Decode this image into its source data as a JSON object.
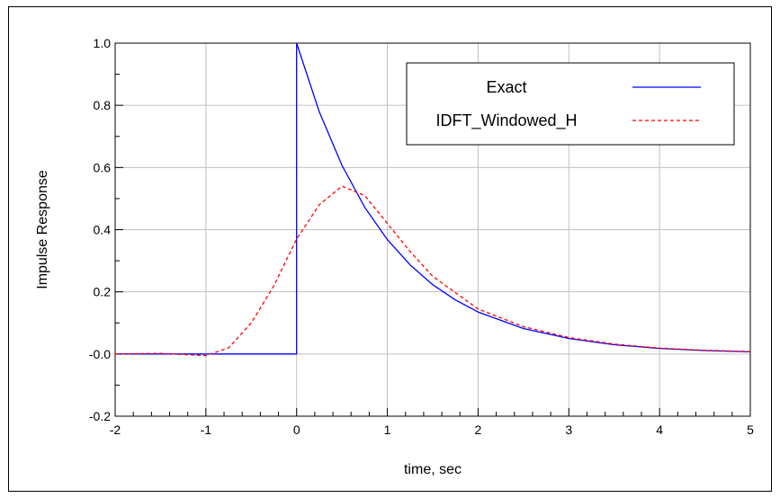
{
  "chart_data": {
    "type": "line",
    "xlabel": "time, sec",
    "ylabel": "Impulse Response",
    "xlim": [
      -2,
      5
    ],
    "ylim": [
      -0.2,
      1.0
    ],
    "x_ticks": [
      -2,
      -1,
      0,
      1,
      2,
      3,
      4,
      5
    ],
    "x_tick_labels": [
      "-2",
      "-1",
      "0",
      "1",
      "2",
      "3",
      "4",
      "5"
    ],
    "y_ticks": [
      -0.2,
      0.0,
      0.2,
      0.4,
      0.6,
      0.8,
      1.0
    ],
    "y_tick_labels": [
      "-0.2",
      "-0.0",
      "0.2",
      "0.4",
      "0.6",
      "0.8",
      "1.0"
    ],
    "grid": true,
    "legend_position": "top-right",
    "series": [
      {
        "name": "Exact",
        "color": "#0000ff",
        "style": "solid",
        "points": [
          [
            -2,
            0
          ],
          [
            -1,
            0
          ],
          [
            0,
            0
          ],
          [
            0,
            1.0
          ],
          [
            0.25,
            0.779
          ],
          [
            0.5,
            0.607
          ],
          [
            0.75,
            0.472
          ],
          [
            1.0,
            0.368
          ],
          [
            1.25,
            0.287
          ],
          [
            1.5,
            0.223
          ],
          [
            1.75,
            0.174
          ],
          [
            2.0,
            0.135
          ],
          [
            2.5,
            0.082
          ],
          [
            3.0,
            0.05
          ],
          [
            3.5,
            0.03
          ],
          [
            4.0,
            0.018
          ],
          [
            4.5,
            0.011
          ],
          [
            5.0,
            0.007
          ]
        ]
      },
      {
        "name": "IDFT_Windowed_H",
        "color": "#ff0000",
        "style": "dashed",
        "points": [
          [
            -2,
            0
          ],
          [
            -1.5,
            0.002
          ],
          [
            -1.0,
            -0.005
          ],
          [
            -0.75,
            0.02
          ],
          [
            -0.5,
            0.1
          ],
          [
            -0.25,
            0.22
          ],
          [
            0,
            0.37
          ],
          [
            0.25,
            0.48
          ],
          [
            0.5,
            0.54
          ],
          [
            0.75,
            0.51
          ],
          [
            1.0,
            0.42
          ],
          [
            1.25,
            0.33
          ],
          [
            1.5,
            0.25
          ],
          [
            2.0,
            0.145
          ],
          [
            2.5,
            0.088
          ],
          [
            3.0,
            0.053
          ],
          [
            3.5,
            0.032
          ],
          [
            4.0,
            0.019
          ],
          [
            4.5,
            0.012
          ],
          [
            5.0,
            0.008
          ]
        ]
      }
    ]
  }
}
